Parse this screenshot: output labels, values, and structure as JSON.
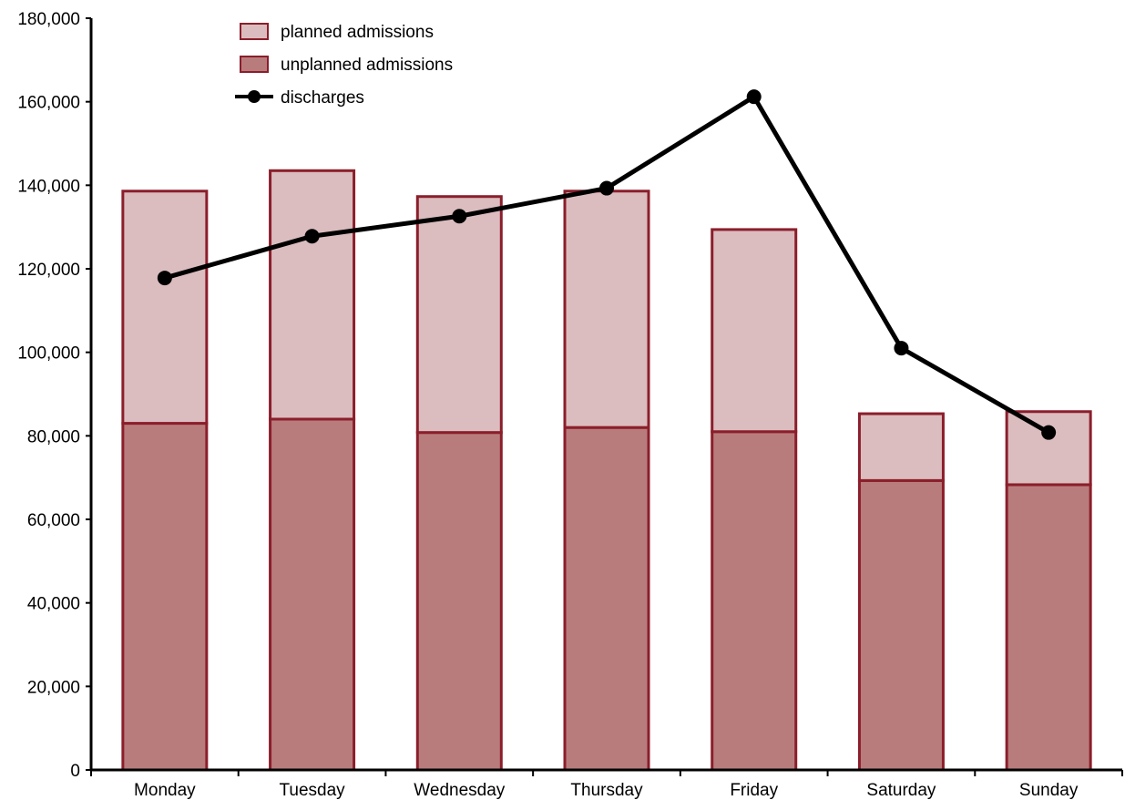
{
  "chart_data": {
    "type": "bar",
    "stacked": true,
    "categories": [
      "Monday",
      "Tuesday",
      "Wednesday",
      "Thursday",
      "Friday",
      "Saturday",
      "Sunday"
    ],
    "series": [
      {
        "name": "unplanned admissions",
        "kind": "bar",
        "color": "#b97c7c",
        "border": "#8b1e2b",
        "values": [
          83000,
          84000,
          80800,
          82000,
          81000,
          69300,
          68300
        ]
      },
      {
        "name": "planned admissions",
        "kind": "bar",
        "color": "#dbbdbf",
        "border": "#8b1e2b",
        "values": [
          55600,
          59500,
          56500,
          56600,
          48400,
          16000,
          17500
        ]
      },
      {
        "name": "discharges",
        "kind": "line",
        "color": "#000000",
        "values": [
          117800,
          127800,
          132600,
          139300,
          161200,
          101000,
          80800
        ]
      }
    ],
    "legend_order": [
      "planned admissions",
      "unplanned admissions",
      "discharges"
    ],
    "legend_position": "top-left",
    "ylim": [
      0,
      180000
    ],
    "yticks": [
      0,
      20000,
      40000,
      60000,
      80000,
      100000,
      120000,
      140000,
      160000,
      180000
    ],
    "ytick_labels": [
      "0",
      "20,000",
      "40,000",
      "60,000",
      "80,000",
      "100,000",
      "120,000",
      "140,000",
      "160,000",
      "180,000"
    ],
    "grid": false
  }
}
